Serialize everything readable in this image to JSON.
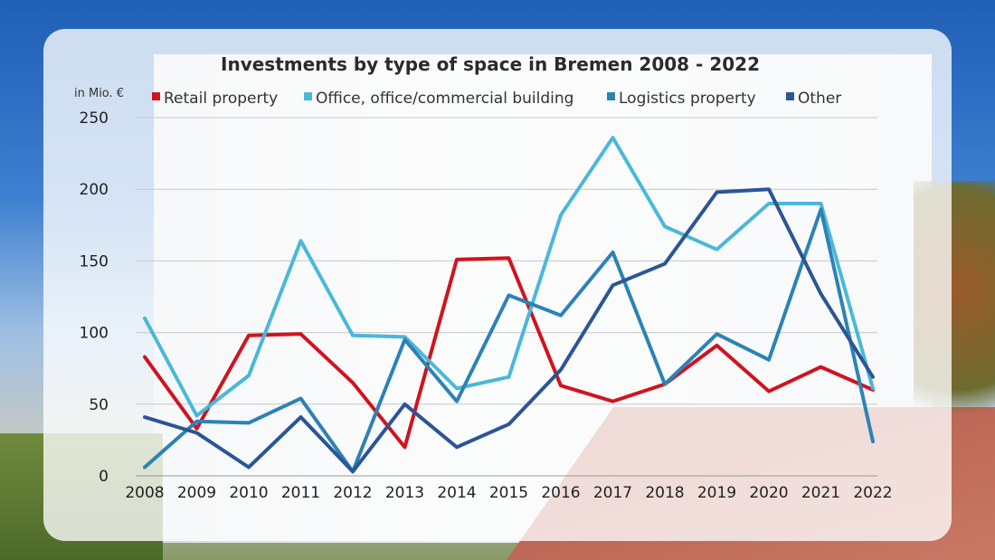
{
  "chart_data": {
    "type": "line",
    "title": "Investments by type of space in Bremen 2008 - 2022",
    "ylabel": "in Mio. €",
    "xlabel": "",
    "ylim": [
      0,
      250
    ],
    "yticks": [
      0,
      50,
      100,
      150,
      200,
      250
    ],
    "grid": true,
    "legend_position": "top",
    "x": [
      "2008",
      "2009",
      "2010",
      "2011",
      "2012",
      "2013",
      "2014",
      "2015",
      "2016",
      "2017",
      "2018",
      "2019",
      "2020",
      "2021",
      "2022"
    ],
    "series": [
      {
        "name": "Retail property",
        "color": "#d0131f",
        "values": [
          83,
          33,
          98,
          99,
          65,
          20,
          151,
          152,
          63,
          52,
          64,
          91,
          59,
          76,
          60
        ]
      },
      {
        "name": "Office, office/commercial building",
        "color": "#4ab8d8",
        "values": [
          110,
          42,
          70,
          164,
          98,
          97,
          61,
          69,
          182,
          236,
          174,
          158,
          190,
          190,
          61
        ]
      },
      {
        "name": "Logistics property",
        "color": "#2d82b5",
        "values": [
          6,
          38,
          37,
          54,
          3,
          95,
          52,
          126,
          112,
          156,
          64,
          99,
          81,
          186,
          24
        ]
      },
      {
        "name": "Other",
        "color": "#2a5596",
        "values": [
          41,
          30,
          6,
          41,
          3,
          50,
          20,
          36,
          74,
          133,
          148,
          198,
          200,
          127,
          69
        ]
      }
    ]
  }
}
